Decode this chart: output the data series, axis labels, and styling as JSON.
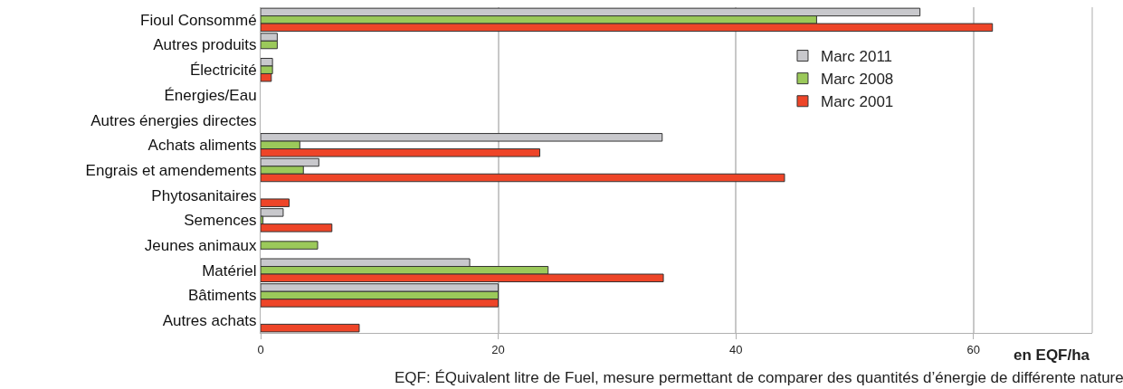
{
  "chart_data": {
    "type": "bar",
    "orientation": "horizontal",
    "categories": [
      "Fioul Consommé",
      "Autres produits",
      "Électricité",
      "Énergies/Eau",
      "Autres énergies directes",
      "Achats aliments",
      "Engrais et amendements",
      "Phytosanitaires",
      "Semences",
      "Jeunes animaux",
      "Matériel",
      "Bâtiments",
      "Autres achats"
    ],
    "series": [
      {
        "name": "Marc 2011",
        "color": "#c8c8cc",
        "values": [
          55.5,
          1.4,
          1.0,
          null,
          null,
          33.8,
          4.9,
          null,
          1.9,
          null,
          17.6,
          20.0,
          null
        ]
      },
      {
        "name": "Marc 2008",
        "color": "#9bc95a",
        "values": [
          46.8,
          1.4,
          1.0,
          null,
          null,
          3.3,
          3.6,
          null,
          0.2,
          4.8,
          24.2,
          20.0,
          null
        ]
      },
      {
        "name": "Marc 2001",
        "color": "#ee4528",
        "values": [
          61.6,
          null,
          0.9,
          null,
          null,
          23.5,
          44.1,
          2.4,
          6.0,
          null,
          33.9,
          20.0,
          8.3
        ]
      }
    ],
    "xlim": [
      0,
      70
    ],
    "xticks": [
      0,
      20,
      40,
      60
    ],
    "xlabel": "en EQF/ha",
    "grid": "x",
    "legend": "top right",
    "annotations": [
      "EQF: ÉQuivalent litre de Fuel, mesure permettant de comparer des quantités d’énergie de différente nature"
    ]
  }
}
